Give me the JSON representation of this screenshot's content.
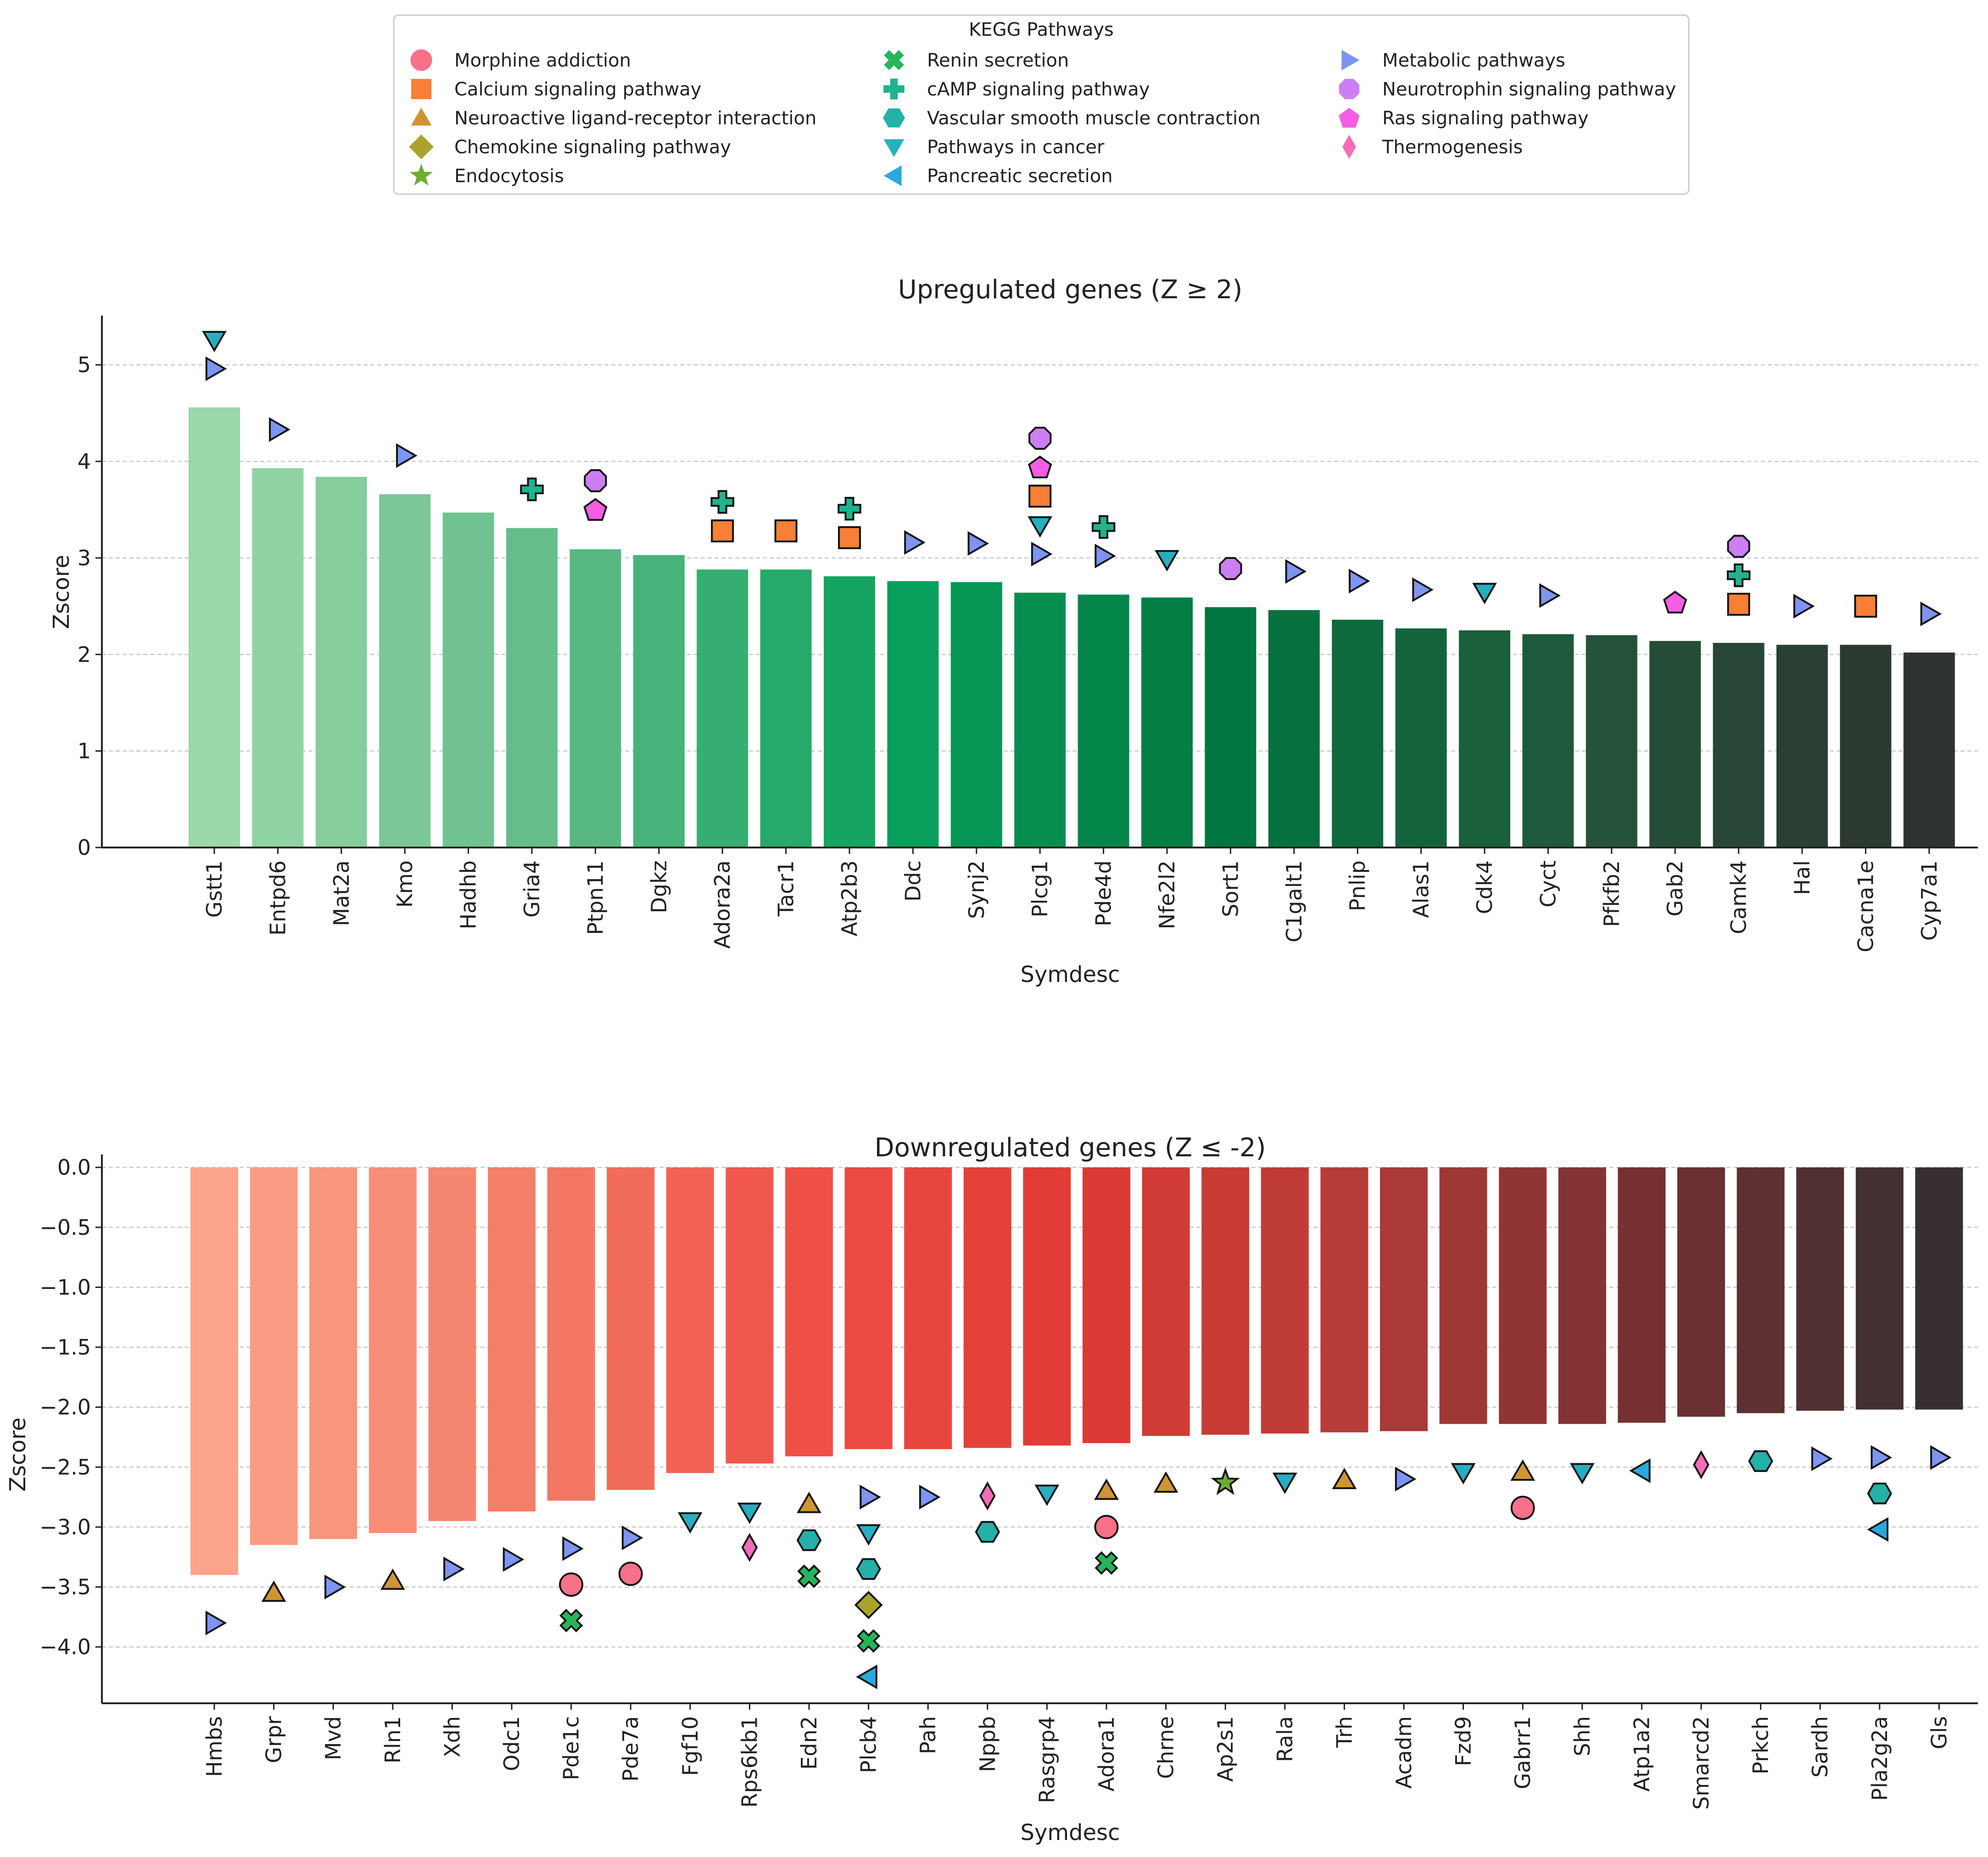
{
  "legend": {
    "title": "KEGG Pathways",
    "items": [
      {
        "label": "Morphine addiction",
        "shape": "circle",
        "color": "#f77189"
      },
      {
        "label": "Calcium signaling pathway",
        "shape": "square",
        "color": "#f77f36"
      },
      {
        "label": "Neuroactive ligand-receptor interaction",
        "shape": "triangle-up",
        "color": "#d09434"
      },
      {
        "label": "Chemokine signaling pathway",
        "shape": "diamond",
        "color": "#aba22e"
      },
      {
        "label": "Endocytosis",
        "shape": "star",
        "color": "#6fad31"
      },
      {
        "label": "Renin secretion",
        "shape": "x",
        "color": "#26b55a"
      },
      {
        "label": "cAMP signaling pathway",
        "shape": "plus",
        "color": "#20b38e"
      },
      {
        "label": "Vascular smooth muscle contraction",
        "shape": "hexagon",
        "color": "#25b0a8"
      },
      {
        "label": "Pathways in cancer",
        "shape": "triangle-down",
        "color": "#28aec0"
      },
      {
        "label": "Pancreatic secretion",
        "shape": "triangle-left",
        "color": "#2aa8dd"
      },
      {
        "label": "Metabolic pathways",
        "shape": "triangle-right",
        "color": "#7d94f2"
      },
      {
        "label": "Neurotrophin signaling pathway",
        "shape": "octagon",
        "color": "#cb7ff2"
      },
      {
        "label": "Ras signaling pathway",
        "shape": "pentagon",
        "color": "#f35ee4"
      },
      {
        "label": "Thermogenesis",
        "shape": "thin-diamond",
        "color": "#f56db8"
      }
    ]
  },
  "chart_data": [
    {
      "type": "bar",
      "title": "Upregulated genes (Z ≥ 2)",
      "xlabel": "Symdesc",
      "ylabel": "Zscore",
      "ylim": [
        0,
        5.5
      ],
      "yticks": [
        0,
        1,
        2,
        3,
        4,
        5
      ],
      "ytick_labels": [
        "0",
        "1",
        "2",
        "3",
        "4",
        "5"
      ],
      "grid": true,
      "palette": [
        "#9bd8a9",
        "#61bb87",
        "#08a05c",
        "#01743f",
        "#23563a",
        "#2e332f"
      ],
      "categories": [
        "Gstt1",
        "Entpd6",
        "Mat2a",
        "Kmo",
        "Hadhb",
        "Gria4",
        "Ptpn11",
        "Dgkz",
        "Adora2a",
        "Tacr1",
        "Atp2b3",
        "Ddc",
        "Synj2",
        "Plcg1",
        "Pde4d",
        "Nfe2l2",
        "Sort1",
        "C1galt1",
        "Pnlip",
        "Alas1",
        "Cdk4",
        "Cyct",
        "Pfkfb2",
        "Gab2",
        "Camk4",
        "Hal",
        "Cacna1e",
        "Cyp7a1"
      ],
      "values": [
        4.56,
        3.93,
        3.84,
        3.66,
        3.47,
        3.31,
        3.09,
        3.03,
        2.88,
        2.88,
        2.81,
        2.76,
        2.75,
        2.64,
        2.62,
        2.59,
        2.49,
        2.46,
        2.36,
        2.27,
        2.25,
        2.21,
        2.2,
        2.14,
        2.12,
        2.1,
        2.1,
        2.02
      ],
      "markers": [
        {
          "gene": "Gstt1",
          "pathway": 8,
          "y": 5.26
        },
        {
          "gene": "Gstt1",
          "pathway": 10,
          "y": 4.96
        },
        {
          "gene": "Entpd6",
          "pathway": 10,
          "y": 4.33
        },
        {
          "gene": "Kmo",
          "pathway": 10,
          "y": 4.06
        },
        {
          "gene": "Gria4",
          "pathway": 6,
          "y": 3.71
        },
        {
          "gene": "Ptpn11",
          "pathway": 11,
          "y": 3.8
        },
        {
          "gene": "Ptpn11",
          "pathway": 12,
          "y": 3.5
        },
        {
          "gene": "Adora2a",
          "pathway": 6,
          "y": 3.58
        },
        {
          "gene": "Adora2a",
          "pathway": 1,
          "y": 3.28
        },
        {
          "gene": "Tacr1",
          "pathway": 1,
          "y": 3.28
        },
        {
          "gene": "Atp2b3",
          "pathway": 6,
          "y": 3.51
        },
        {
          "gene": "Atp2b3",
          "pathway": 1,
          "y": 3.21
        },
        {
          "gene": "Ddc",
          "pathway": 10,
          "y": 3.16
        },
        {
          "gene": "Synj2",
          "pathway": 10,
          "y": 3.15
        },
        {
          "gene": "Plcg1",
          "pathway": 11,
          "y": 4.24
        },
        {
          "gene": "Plcg1",
          "pathway": 12,
          "y": 3.94
        },
        {
          "gene": "Plcg1",
          "pathway": 1,
          "y": 3.64
        },
        {
          "gene": "Plcg1",
          "pathway": 8,
          "y": 3.34
        },
        {
          "gene": "Plcg1",
          "pathway": 10,
          "y": 3.04
        },
        {
          "gene": "Pde4d",
          "pathway": 6,
          "y": 3.32
        },
        {
          "gene": "Pde4d",
          "pathway": 10,
          "y": 3.02
        },
        {
          "gene": "Nfe2l2",
          "pathway": 8,
          "y": 2.99
        },
        {
          "gene": "Sort1",
          "pathway": 11,
          "y": 2.89
        },
        {
          "gene": "C1galt1",
          "pathway": 10,
          "y": 2.86
        },
        {
          "gene": "Pnlip",
          "pathway": 10,
          "y": 2.76
        },
        {
          "gene": "Alas1",
          "pathway": 10,
          "y": 2.67
        },
        {
          "gene": "Cdk4",
          "pathway": 8,
          "y": 2.65
        },
        {
          "gene": "Cyct",
          "pathway": 10,
          "y": 2.61
        },
        {
          "gene": "Gab2",
          "pathway": 12,
          "y": 2.54
        },
        {
          "gene": "Camk4",
          "pathway": 11,
          "y": 3.12
        },
        {
          "gene": "Camk4",
          "pathway": 6,
          "y": 2.82
        },
        {
          "gene": "Camk4",
          "pathway": 1,
          "y": 2.52
        },
        {
          "gene": "Hal",
          "pathway": 10,
          "y": 2.5
        },
        {
          "gene": "Cacna1e",
          "pathway": 1,
          "y": 2.5
        },
        {
          "gene": "Cyp7a1",
          "pathway": 10,
          "y": 2.42
        }
      ]
    },
    {
      "type": "bar",
      "title": "Downregulated genes (Z ≤ -2)",
      "xlabel": "Symdesc",
      "ylabel": "Zscore",
      "ylim": [
        -4.47,
        0.1
      ],
      "yticks": [
        0.0,
        -0.5,
        -1.0,
        -1.5,
        -2.0,
        -2.5,
        -3.0,
        -3.5,
        -4.0
      ],
      "ytick_labels": [
        "0.0",
        "−0.5",
        "−1.0",
        "−1.5",
        "−2.0",
        "−2.5",
        "−3.0",
        "−3.5",
        "−4.0"
      ],
      "grid": true,
      "palette": [
        "#fba48b",
        "#f4816a",
        "#ef5248",
        "#df3a33",
        "#b33c38",
        "#743032",
        "#383030"
      ],
      "categories": [
        "Hmbs",
        "Grpr",
        "Mvd",
        "Rln1",
        "Xdh",
        "Odc1",
        "Pde1c",
        "Pde7a",
        "Fgf10",
        "Rps6kb1",
        "Edn2",
        "Plcb4",
        "Pah",
        "Nppb",
        "Rasgrp4",
        "Adora1",
        "Chrne",
        "Ap2s1",
        "Rala",
        "Trh",
        "Acadm",
        "Fzd9",
        "Gabrr1",
        "Shh",
        "Atp1a2",
        "Smarcd2",
        "Prkch",
        "Sardh",
        "Pla2g2a",
        "Gls"
      ],
      "values": [
        -3.4,
        -3.15,
        -3.1,
        -3.05,
        -2.95,
        -2.87,
        -2.78,
        -2.69,
        -2.55,
        -2.47,
        -2.41,
        -2.35,
        -2.35,
        -2.34,
        -2.32,
        -2.3,
        -2.24,
        -2.23,
        -2.22,
        -2.21,
        -2.2,
        -2.14,
        -2.14,
        -2.14,
        -2.13,
        -2.08,
        -2.05,
        -2.03,
        -2.02,
        -2.02
      ],
      "markers": [
        {
          "gene": "Hmbs",
          "pathway": 10,
          "y": -3.8
        },
        {
          "gene": "Grpr",
          "pathway": 2,
          "y": -3.55
        },
        {
          "gene": "Mvd",
          "pathway": 10,
          "y": -3.5
        },
        {
          "gene": "Rln1",
          "pathway": 2,
          "y": -3.45
        },
        {
          "gene": "Xdh",
          "pathway": 10,
          "y": -3.35
        },
        {
          "gene": "Odc1",
          "pathway": 10,
          "y": -3.27
        },
        {
          "gene": "Pde1c",
          "pathway": 10,
          "y": -3.18
        },
        {
          "gene": "Pde1c",
          "pathway": 0,
          "y": -3.48
        },
        {
          "gene": "Pde1c",
          "pathway": 5,
          "y": -3.78
        },
        {
          "gene": "Pde7a",
          "pathway": 10,
          "y": -3.09
        },
        {
          "gene": "Pde7a",
          "pathway": 0,
          "y": -3.39
        },
        {
          "gene": "Fgf10",
          "pathway": 8,
          "y": -2.95
        },
        {
          "gene": "Rps6kb1",
          "pathway": 8,
          "y": -2.87
        },
        {
          "gene": "Rps6kb1",
          "pathway": 13,
          "y": -3.17
        },
        {
          "gene": "Edn2",
          "pathway": 2,
          "y": -2.81
        },
        {
          "gene": "Edn2",
          "pathway": 7,
          "y": -3.11
        },
        {
          "gene": "Edn2",
          "pathway": 5,
          "y": -3.41
        },
        {
          "gene": "Plcb4",
          "pathway": 10,
          "y": -2.75
        },
        {
          "gene": "Plcb4",
          "pathway": 8,
          "y": -3.05
        },
        {
          "gene": "Plcb4",
          "pathway": 7,
          "y": -3.35
        },
        {
          "gene": "Plcb4",
          "pathway": 3,
          "y": -3.65
        },
        {
          "gene": "Plcb4",
          "pathway": 5,
          "y": -3.95
        },
        {
          "gene": "Plcb4",
          "pathway": 9,
          "y": -4.25
        },
        {
          "gene": "Pah",
          "pathway": 10,
          "y": -2.75
        },
        {
          "gene": "Nppb",
          "pathway": 13,
          "y": -2.74
        },
        {
          "gene": "Nppb",
          "pathway": 7,
          "y": -3.04
        },
        {
          "gene": "Rasgrp4",
          "pathway": 8,
          "y": -2.72
        },
        {
          "gene": "Adora1",
          "pathway": 2,
          "y": -2.7
        },
        {
          "gene": "Adora1",
          "pathway": 0,
          "y": -3.0
        },
        {
          "gene": "Adora1",
          "pathway": 5,
          "y": -3.3
        },
        {
          "gene": "Chrne",
          "pathway": 2,
          "y": -2.64
        },
        {
          "gene": "Ap2s1",
          "pathway": 4,
          "y": -2.63
        },
        {
          "gene": "Rala",
          "pathway": 8,
          "y": -2.62
        },
        {
          "gene": "Trh",
          "pathway": 2,
          "y": -2.61
        },
        {
          "gene": "Acadm",
          "pathway": 10,
          "y": -2.6
        },
        {
          "gene": "Fzd9",
          "pathway": 8,
          "y": -2.54
        },
        {
          "gene": "Gabrr1",
          "pathway": 2,
          "y": -2.54
        },
        {
          "gene": "Gabrr1",
          "pathway": 0,
          "y": -2.84
        },
        {
          "gene": "Shh",
          "pathway": 8,
          "y": -2.54
        },
        {
          "gene": "Atp1a2",
          "pathway": 9,
          "y": -2.53
        },
        {
          "gene": "Smarcd2",
          "pathway": 13,
          "y": -2.48
        },
        {
          "gene": "Prkch",
          "pathway": 7,
          "y": -2.45
        },
        {
          "gene": "Sardh",
          "pathway": 10,
          "y": -2.43
        },
        {
          "gene": "Pla2g2a",
          "pathway": 10,
          "y": -2.42
        },
        {
          "gene": "Pla2g2a",
          "pathway": 7,
          "y": -2.72
        },
        {
          "gene": "Pla2g2a",
          "pathway": 9,
          "y": -3.02
        },
        {
          "gene": "Gls",
          "pathway": 10,
          "y": -2.42
        }
      ]
    }
  ]
}
